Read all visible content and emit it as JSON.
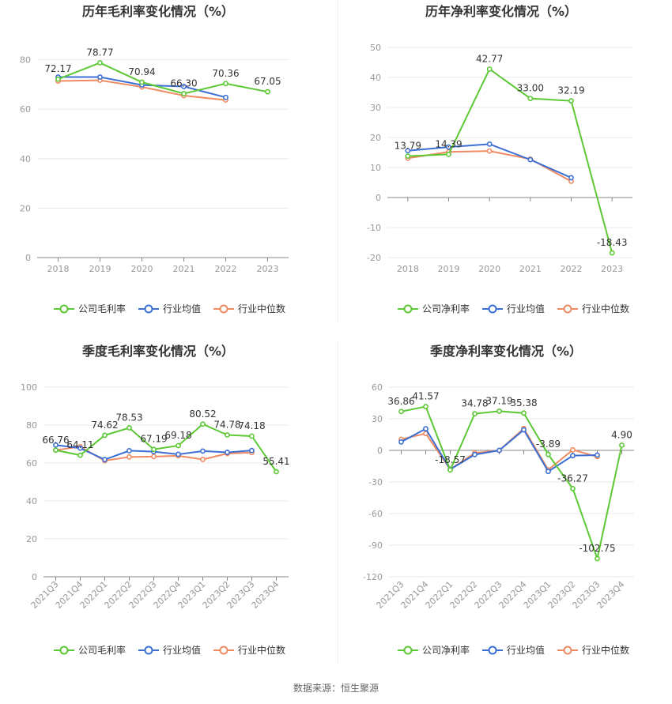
{
  "colors": {
    "company": "#5cc834",
    "avg": "#3c6fd4",
    "median": "#ef8a62",
    "grid": "#e8e8e8",
    "axis": "#888888"
  },
  "footer": {
    "source": "数据来源：恒生聚源"
  },
  "chart_data": [
    {
      "type": "line",
      "title": "历年毛利率变化情况（%）",
      "categories": [
        "2018",
        "2019",
        "2020",
        "2021",
        "2022",
        "2023"
      ],
      "ylim": [
        0,
        85
      ],
      "yticks": [
        0,
        20,
        40,
        60,
        80
      ],
      "series": [
        {
          "name": "公司毛利率",
          "key": "company",
          "values": [
            72.17,
            78.77,
            70.94,
            66.3,
            70.36,
            67.05
          ],
          "labels": [
            "72.17",
            "78.77",
            "70.94",
            "66.30",
            "70.36",
            "67.05"
          ]
        },
        {
          "name": "行业均值",
          "key": "avg",
          "values": [
            73.0,
            73.0,
            69.8,
            69.2,
            64.8,
            null
          ]
        },
        {
          "name": "行业中位数",
          "key": "median",
          "values": [
            71.4,
            71.7,
            69.0,
            65.5,
            63.7,
            null
          ]
        }
      ],
      "rotate_x": false
    },
    {
      "type": "line",
      "title": "历年净利率变化情况（%）",
      "categories": [
        "2018",
        "2019",
        "2020",
        "2021",
        "2022",
        "2023"
      ],
      "ylim": [
        -20,
        50
      ],
      "yticks": [
        -20,
        -10,
        0,
        10,
        20,
        30,
        40,
        50
      ],
      "series": [
        {
          "name": "公司净利率",
          "key": "company",
          "values": [
            13.79,
            14.39,
            42.77,
            33.0,
            32.19,
            -18.43
          ],
          "labels": [
            "13.79",
            "14.39",
            "42.77",
            "33.00",
            "32.19",
            "-18.43"
          ]
        },
        {
          "name": "行业均值",
          "key": "avg",
          "values": [
            15.6,
            16.8,
            17.8,
            12.6,
            6.6,
            null
          ]
        },
        {
          "name": "行业中位数",
          "key": "median",
          "values": [
            13.1,
            15.2,
            15.5,
            12.8,
            5.4,
            null
          ]
        }
      ],
      "rotate_x": false
    },
    {
      "type": "line",
      "title": "季度毛利率变化情况（%）",
      "categories": [
        "2021Q3",
        "2021Q4",
        "2022Q1",
        "2022Q2",
        "2022Q3",
        "2022Q4",
        "2023Q1",
        "2023Q2",
        "2023Q3",
        "2023Q4"
      ],
      "ylim": [
        0,
        100
      ],
      "yticks": [
        0,
        20,
        40,
        60,
        80,
        100
      ],
      "series": [
        {
          "name": "公司毛利率",
          "key": "company",
          "values": [
            66.76,
            64.11,
            74.62,
            78.53,
            67.19,
            69.18,
            80.52,
            74.78,
            74.18,
            55.41
          ],
          "labels": [
            "66.76",
            "64.11",
            "74.62",
            "78.53",
            "67.19",
            "69.18",
            "80.52",
            "74.78",
            "74.18",
            "55.41"
          ]
        },
        {
          "name": "行业均值",
          "key": "avg",
          "values": [
            69.5,
            67.8,
            61.8,
            66.5,
            66.0,
            64.6,
            66.3,
            65.6,
            66.6,
            null
          ]
        },
        {
          "name": "行业中位数",
          "key": "median",
          "values": [
            66.8,
            68.6,
            61.2,
            63.2,
            63.4,
            63.8,
            61.9,
            65.0,
            65.5,
            null
          ]
        }
      ],
      "rotate_x": true
    },
    {
      "type": "line",
      "title": "季度净利率变化情况（%）",
      "categories": [
        "2021Q3",
        "2021Q4",
        "2022Q1",
        "2022Q2",
        "2022Q3",
        "2022Q4",
        "2023Q1",
        "2023Q2",
        "2023Q3",
        "2023Q4"
      ],
      "ylim": [
        -120,
        60
      ],
      "yticks": [
        -120,
        -90,
        -60,
        -30,
        0,
        30,
        60
      ],
      "series": [
        {
          "name": "公司净利率",
          "key": "company",
          "values": [
            36.86,
            41.57,
            -18.57,
            34.78,
            37.19,
            35.38,
            -3.89,
            -36.27,
            -102.75,
            4.9
          ],
          "labels": [
            "36.86",
            "41.57",
            "-18.57",
            "34.78",
            "37.19",
            "35.38",
            "-3.89",
            "-36.27",
            "-102.75",
            "4.90"
          ]
        },
        {
          "name": "行业均值",
          "key": "avg",
          "values": [
            8.0,
            20.5,
            -18.0,
            -4.0,
            0.0,
            19.5,
            -20.0,
            -5.0,
            -4.5,
            null
          ]
        },
        {
          "name": "行业中位数",
          "key": "median",
          "values": [
            10.5,
            16.0,
            -18.0,
            -2.5,
            0.0,
            20.8,
            -18.5,
            0.5,
            -6.0,
            null
          ]
        }
      ],
      "rotate_x": true
    }
  ]
}
